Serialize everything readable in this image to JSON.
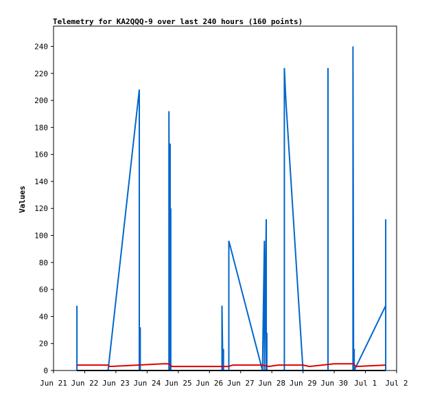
{
  "chart_data": {
    "type": "line",
    "title": "Telemetry for KA2QQQ-9 over last 240 hours (160 points)",
    "xlabel": "",
    "ylabel": "Values",
    "x_ticks": [
      "Jun 21",
      "Jun 22",
      "Jun 23",
      "Jun 24",
      "Jun 25",
      "Jun 26",
      "Jun 27",
      "Jun 28",
      "Jun 29",
      "Jun 30",
      "Jul 1",
      "Jul 2"
    ],
    "xlim": [
      0,
      11
    ],
    "ylim": [
      0,
      255
    ],
    "y_ticks": [
      0,
      20,
      40,
      60,
      80,
      100,
      120,
      140,
      160,
      180,
      200,
      220,
      240
    ],
    "grid": false,
    "legend": "none",
    "series": [
      {
        "color": "#0066cc",
        "points": [
          [
            0.75,
            0
          ],
          [
            0.75,
            48
          ],
          [
            0.75,
            0
          ],
          [
            1.75,
            0
          ],
          [
            2.75,
            208
          ],
          [
            2.75,
            0
          ],
          [
            2.78,
            32
          ],
          [
            2.78,
            0
          ],
          [
            3.7,
            0
          ],
          [
            3.7,
            192
          ],
          [
            3.72,
            0
          ],
          [
            3.74,
            168
          ],
          [
            3.74,
            0
          ],
          [
            3.76,
            120
          ],
          [
            3.76,
            0
          ],
          [
            5.4,
            0
          ],
          [
            5.4,
            48
          ],
          [
            5.43,
            0
          ],
          [
            5.45,
            16
          ],
          [
            5.45,
            0
          ],
          [
            5.62,
            0
          ],
          [
            5.62,
            96
          ],
          [
            6.7,
            0
          ],
          [
            6.76,
            96
          ],
          [
            6.76,
            0
          ],
          [
            6.82,
            112
          ],
          [
            6.82,
            0
          ],
          [
            6.84,
            28
          ],
          [
            6.84,
            0
          ],
          [
            7.4,
            0
          ],
          [
            7.4,
            224
          ],
          [
            7.45,
            200
          ],
          [
            8.0,
            0
          ],
          [
            8.8,
            0
          ],
          [
            8.8,
            224
          ],
          [
            8.8,
            0
          ],
          [
            9.6,
            0
          ],
          [
            9.6,
            240
          ],
          [
            9.62,
            0
          ],
          [
            9.64,
            16
          ],
          [
            9.64,
            0
          ],
          [
            10.65,
            48
          ],
          [
            10.65,
            0
          ],
          [
            10.65,
            112
          ],
          [
            10.65,
            0
          ]
        ]
      },
      {
        "color": "#dd0000",
        "points": [
          [
            0.75,
            4
          ],
          [
            1.75,
            4
          ],
          [
            1.8,
            3
          ],
          [
            2.7,
            4
          ],
          [
            3.5,
            5
          ],
          [
            3.7,
            5
          ],
          [
            3.8,
            3
          ],
          [
            5.6,
            3
          ],
          [
            5.75,
            4
          ],
          [
            6.7,
            4
          ],
          [
            6.9,
            3
          ],
          [
            7.2,
            4
          ],
          [
            8.0,
            4
          ],
          [
            8.2,
            3
          ],
          [
            9.0,
            5
          ],
          [
            9.6,
            5
          ],
          [
            9.7,
            3
          ],
          [
            10.65,
            4
          ]
        ]
      },
      {
        "color": "#000000",
        "points": [
          [
            0.75,
            0
          ],
          [
            10.65,
            0
          ]
        ]
      }
    ]
  }
}
